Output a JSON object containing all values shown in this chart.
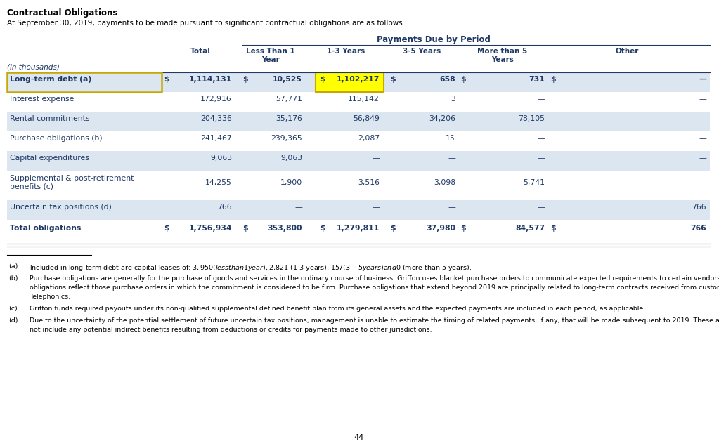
{
  "title": "Contractual Obligations",
  "subtitle": "At September 30, 2019, payments to be made pursuant to significant contractual obligations are as follows:",
  "section_header": "Payments Due by Period",
  "rows": [
    {
      "label": "Long-term debt (a)",
      "total_dollar": "$",
      "total": "1,114,131",
      "lt1_dollar": "$",
      "lt1": "10,525",
      "ot_dollar": "$",
      "ot": "1,102,217",
      "tf_dollar": "$",
      "tf": "658",
      "mt5_dollar": "$",
      "mt5": "731",
      "other_dollar": "$",
      "other": "—",
      "bold": true,
      "stripe": true,
      "highlight_label": true,
      "highlight_ot": true
    },
    {
      "label": "Interest expense",
      "total_dollar": "",
      "total": "172,916",
      "lt1_dollar": "",
      "lt1": "57,771",
      "ot_dollar": "",
      "ot": "115,142",
      "tf_dollar": "",
      "tf": "3",
      "mt5_dollar": "",
      "mt5": "—",
      "other_dollar": "",
      "other": "—",
      "bold": false,
      "stripe": false,
      "highlight_label": false,
      "highlight_ot": false
    },
    {
      "label": "Rental commitments",
      "total_dollar": "",
      "total": "204,336",
      "lt1_dollar": "",
      "lt1": "35,176",
      "ot_dollar": "",
      "ot": "56,849",
      "tf_dollar": "",
      "tf": "34,206",
      "mt5_dollar": "",
      "mt5": "78,105",
      "other_dollar": "",
      "other": "—",
      "bold": false,
      "stripe": true,
      "highlight_label": false,
      "highlight_ot": false
    },
    {
      "label": "Purchase obligations (b)",
      "total_dollar": "",
      "total": "241,467",
      "lt1_dollar": "",
      "lt1": "239,365",
      "ot_dollar": "",
      "ot": "2,087",
      "tf_dollar": "",
      "tf": "15",
      "mt5_dollar": "",
      "mt5": "—",
      "other_dollar": "",
      "other": "—",
      "bold": false,
      "stripe": false,
      "highlight_label": false,
      "highlight_ot": false
    },
    {
      "label": "Capital expenditures",
      "total_dollar": "",
      "total": "9,063",
      "lt1_dollar": "",
      "lt1": "9,063",
      "ot_dollar": "",
      "ot": "—",
      "tf_dollar": "",
      "tf": "—",
      "mt5_dollar": "",
      "mt5": "—",
      "other_dollar": "",
      "other": "—",
      "bold": false,
      "stripe": true,
      "highlight_label": false,
      "highlight_ot": false
    },
    {
      "label": "Supplemental & post-retirement\nbenefits (c)",
      "total_dollar": "",
      "total": "14,255",
      "lt1_dollar": "",
      "lt1": "1,900",
      "ot_dollar": "",
      "ot": "3,516",
      "tf_dollar": "",
      "tf": "3,098",
      "mt5_dollar": "",
      "mt5": "5,741",
      "other_dollar": "",
      "other": "—",
      "bold": false,
      "stripe": false,
      "highlight_label": false,
      "highlight_ot": false
    },
    {
      "label": "Uncertain tax positions (d)",
      "total_dollar": "",
      "total": "766",
      "lt1_dollar": "",
      "lt1": "—",
      "ot_dollar": "",
      "ot": "—",
      "tf_dollar": "",
      "tf": "—",
      "mt5_dollar": "",
      "mt5": "—",
      "other_dollar": "",
      "other": "766",
      "bold": false,
      "stripe": true,
      "highlight_label": false,
      "highlight_ot": false
    },
    {
      "label": "Total obligations",
      "total_dollar": "$",
      "total": "1,756,934",
      "lt1_dollar": "$",
      "lt1": "353,800",
      "ot_dollar": "$",
      "ot": "1,279,811",
      "tf_dollar": "$",
      "tf": "37,980",
      "mt5_dollar": "$",
      "mt5": "84,577",
      "other_dollar": "$",
      "other": "766",
      "bold": true,
      "stripe": false,
      "highlight_label": false,
      "highlight_ot": false
    }
  ],
  "footnotes": [
    {
      "label": "(a)",
      "text": "Included in long-term debt are capital leases of: $3,950 (less than 1 year), $2,821 (1-3 years), $157 (3-5 years) and $0 (more than 5 years)."
    },
    {
      "label": "(b)",
      "text": "Purchase obligations are generally for the purchase of goods and services in the ordinary course of business. Griffon uses blanket purchase orders to communicate expected requirements to certain vendors. Purchase obligations reflect those purchase orders in which the commitment is considered to be firm. Purchase obligations that extend beyond 2019 are principally related to long-term contracts received from customers of Telephonics."
    },
    {
      "label": "(c)",
      "text": "Griffon funds required payouts under its non-qualified supplemental defined benefit plan from its general assets and the expected payments are included in each period, as applicable."
    },
    {
      "label": "(d)",
      "text": "Due to the uncertainty of the potential settlement of future uncertain tax positions, management is unable to estimate the timing of related payments, if any, that will be made subsequent to 2019. These amounts do not include any potential indirect benefits resulting from deductions or credits for payments made to other jurisdictions."
    }
  ],
  "page_number": "44",
  "bg_color": "#ffffff",
  "stripe_color": "#dce6f1",
  "text_color": "#1f3864",
  "yellow_color": "#ffff00",
  "yellow_border": "#c8a800"
}
